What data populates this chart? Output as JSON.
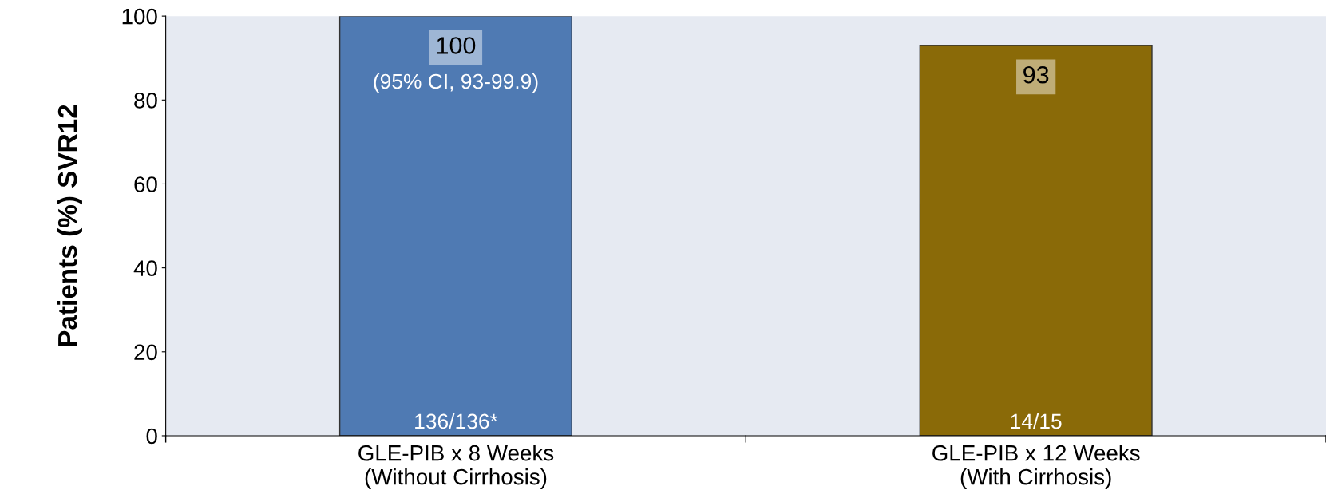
{
  "chart_data": {
    "type": "bar",
    "ylabel": "Patients (%) SVR12",
    "categories": [
      "GLE-PIB x 8 Weeks\n(Without Cirrhosis)",
      "GLE-PIB x 12 Weeks\n(With Cirrhosis)"
    ],
    "values": [
      100,
      93
    ],
    "colors": [
      "#4f7ab3",
      "#8a6a08"
    ],
    "ylim": [
      0,
      100
    ],
    "yticks": [
      0,
      20,
      40,
      60,
      80,
      100
    ],
    "grid": false,
    "data_labels": true,
    "annotations": [
      "(95% CI, 93-99.9)",
      "136/136*",
      "14/15"
    ]
  }
}
